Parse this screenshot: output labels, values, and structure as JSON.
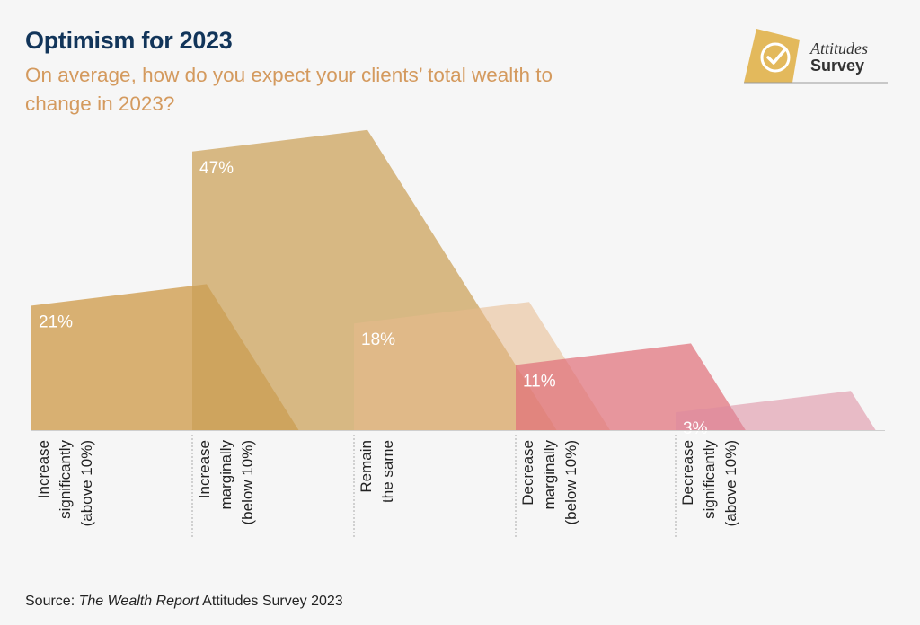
{
  "header": {
    "title": "Optimism for 2023",
    "subtitle": "On average, how do you expect your clients’ total wealth to change in 2023?"
  },
  "logo": {
    "line1": "Attitudes",
    "line2": "Survey",
    "icon": "checkmark-badge-icon"
  },
  "source": {
    "prefix": "Source: ",
    "italic": "The Wealth Report",
    "suffix": " Attitudes Survey 2023"
  },
  "chart_data": {
    "type": "bar",
    "categories": [
      [
        "Increase",
        "significantly",
        "(above 10%)"
      ],
      [
        "Increase",
        "marginally",
        "(below 10%)"
      ],
      [
        "Remain",
        "the same"
      ],
      [
        "Decrease",
        "marginally",
        "(below 10%)"
      ],
      [
        "Decrease",
        "significantly",
        "(above 10%)"
      ]
    ],
    "values": [
      21,
      47,
      18,
      11,
      3
    ],
    "value_labels": [
      "21%",
      "47%",
      "18%",
      "11%",
      "3%"
    ],
    "colors": [
      "#d4a660",
      "#caa056",
      "#e8b98c",
      "#e0707a",
      "#dd8b9e"
    ],
    "opacities": [
      0.88,
      0.72,
      0.55,
      0.72,
      0.55
    ]
  }
}
